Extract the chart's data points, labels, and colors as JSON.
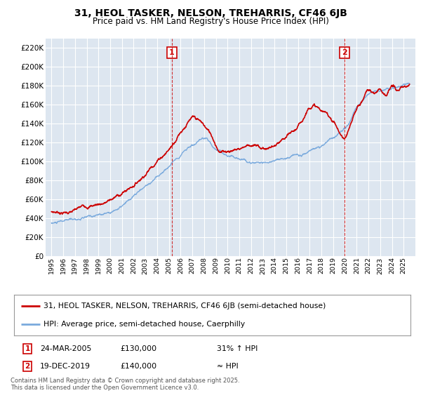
{
  "title": "31, HEOL TASKER, NELSON, TREHARRIS, CF46 6JB",
  "subtitle": "Price paid vs. HM Land Registry's House Price Index (HPI)",
  "bg_color": "#dde6f0",
  "plot_bg_color": "#dde6f0",
  "red_line_label": "31, HEOL TASKER, NELSON, TREHARRIS, CF46 6JB (semi-detached house)",
  "blue_line_label": "HPI: Average price, semi-detached house, Caerphilly",
  "annotation1": {
    "num": "1",
    "date": "24-MAR-2005",
    "price": "£130,000",
    "note": "31% ↑ HPI",
    "x_year": 2005.23
  },
  "annotation2": {
    "num": "2",
    "date": "19-DEC-2019",
    "price": "£140,000",
    "note": "≈ HPI",
    "x_year": 2019.97
  },
  "footer": "Contains HM Land Registry data © Crown copyright and database right 2025.\nThis data is licensed under the Open Government Licence v3.0.",
  "ylim": [
    0,
    230000
  ],
  "yticks": [
    0,
    20000,
    40000,
    60000,
    80000,
    100000,
    120000,
    140000,
    160000,
    180000,
    200000,
    220000
  ],
  "xlim_start": 1994.5,
  "xlim_end": 2026.0,
  "xtick_years": [
    1995,
    1996,
    1997,
    1998,
    1999,
    2000,
    2001,
    2002,
    2003,
    2004,
    2005,
    2006,
    2007,
    2008,
    2009,
    2010,
    2011,
    2012,
    2013,
    2014,
    2015,
    2016,
    2017,
    2018,
    2019,
    2020,
    2021,
    2022,
    2023,
    2024,
    2025
  ],
  "red_color": "#cc0000",
  "blue_color": "#7aaadd",
  "vline_color": "#cc0000",
  "white_grid": "#ffffff"
}
